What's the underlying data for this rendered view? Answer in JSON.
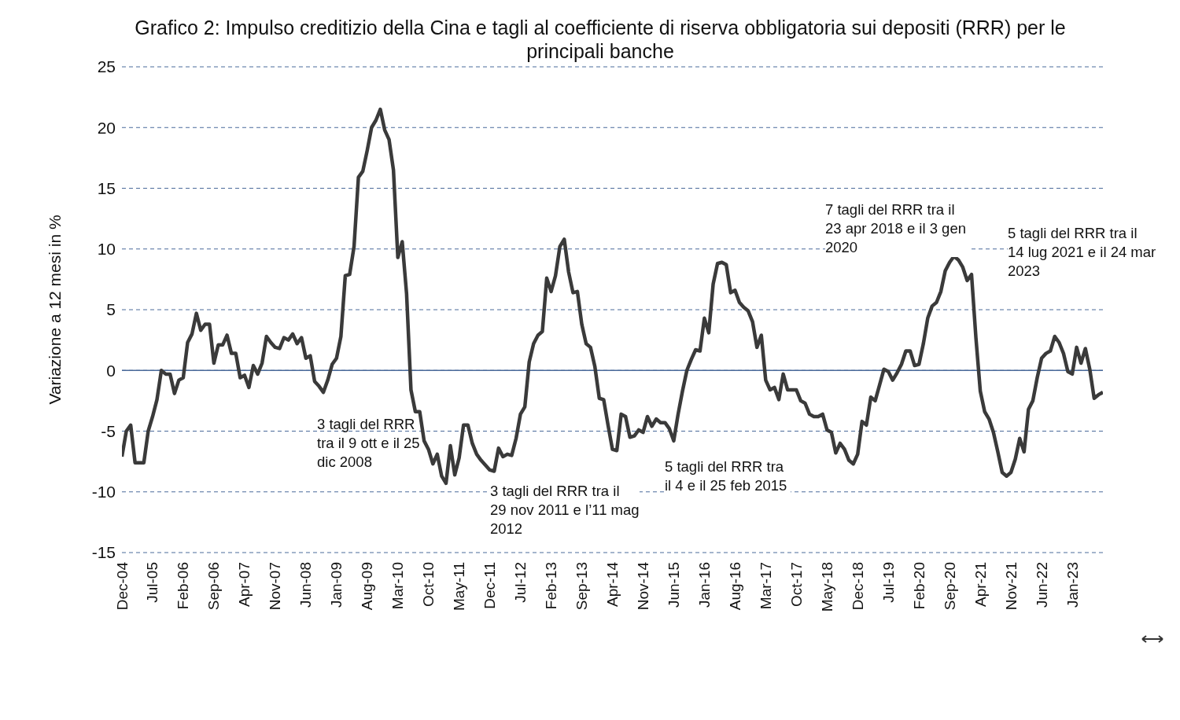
{
  "chart_data": {
    "type": "line",
    "title": "Grafico 2: Impulso creditizio della Cina e tagli al coefficiente di riserva obbligatoria sui depositi (RRR) per le principali banche",
    "ylabel": "Variazione a 12 mesi in %",
    "categories": [
      "Dec-04",
      null,
      null,
      null,
      null,
      null,
      null,
      "Jul-05",
      null,
      null,
      null,
      null,
      null,
      null,
      "Feb-06",
      null,
      null,
      null,
      null,
      null,
      null,
      "Sep-06",
      null,
      null,
      null,
      null,
      null,
      null,
      "Apr-07",
      null,
      null,
      null,
      null,
      null,
      null,
      "Nov-07",
      null,
      null,
      null,
      null,
      null,
      null,
      "Jun-08",
      null,
      null,
      null,
      null,
      null,
      null,
      "Jan-09",
      null,
      null,
      null,
      null,
      null,
      null,
      "Aug-09",
      null,
      null,
      null,
      null,
      null,
      null,
      "Mar-10",
      null,
      null,
      null,
      null,
      null,
      null,
      "Oct-10",
      null,
      null,
      null,
      null,
      null,
      null,
      "May-11",
      null,
      null,
      null,
      null,
      null,
      null,
      "Dec-11",
      null,
      null,
      null,
      null,
      null,
      null,
      "Jul-12",
      null,
      null,
      null,
      null,
      null,
      null,
      "Feb-13",
      null,
      null,
      null,
      null,
      null,
      null,
      "Sep-13",
      null,
      null,
      null,
      null,
      null,
      null,
      "Apr-14",
      null,
      null,
      null,
      null,
      null,
      null,
      "Nov-14",
      null,
      null,
      null,
      null,
      null,
      null,
      "Jun-15",
      null,
      null,
      null,
      null,
      null,
      null,
      "Jan-16",
      null,
      null,
      null,
      null,
      null,
      null,
      "Aug-16",
      null,
      null,
      null,
      null,
      null,
      null,
      "Mar-17",
      null,
      null,
      null,
      null,
      null,
      null,
      "Oct-17",
      null,
      null,
      null,
      null,
      null,
      null,
      "May-18",
      null,
      null,
      null,
      null,
      null,
      null,
      "Dec-18",
      null,
      null,
      null,
      null,
      null,
      null,
      "Jul-19",
      null,
      null,
      null,
      null,
      null,
      null,
      "Feb-20",
      null,
      null,
      null,
      null,
      null,
      null,
      "Sep-20",
      null,
      null,
      null,
      null,
      null,
      null,
      "Apr-21",
      null,
      null,
      null,
      null,
      null,
      null,
      "Nov-21",
      null,
      null,
      null,
      null,
      null,
      null,
      "Jun-22",
      null,
      null,
      null,
      null,
      null,
      null,
      "Jan-23",
      null,
      null,
      null,
      null,
      null,
      null,
      null
    ],
    "series": [
      {
        "color": "#3a3a3a",
        "values": [
          -7.1,
          -5.0,
          -4.5,
          -7.6,
          -7.6,
          -7.6,
          -5.0,
          -3.8,
          -2.4,
          0.0,
          -0.3,
          -0.3,
          -1.9,
          -0.8,
          -0.6,
          2.3,
          3.0,
          4.7,
          3.3,
          3.8,
          3.8,
          0.6,
          2.1,
          2.1,
          2.9,
          1.4,
          1.4,
          -0.6,
          -0.4,
          -1.4,
          0.4,
          -0.3,
          0.6,
          2.8,
          2.3,
          1.9,
          1.8,
          2.7,
          2.5,
          3.0,
          2.2,
          2.7,
          1.0,
          1.2,
          -0.9,
          -1.3,
          -1.8,
          -0.8,
          0.5,
          1.0,
          2.8,
          7.8,
          7.9,
          10.2,
          15.9,
          16.4,
          18.1,
          20.0,
          20.6,
          21.5,
          19.8,
          19.0,
          16.5,
          9.3,
          10.6,
          6.3,
          -1.6,
          -3.4,
          -3.4,
          -5.8,
          -6.5,
          -7.7,
          -6.9,
          -8.7,
          -9.3,
          -6.2,
          -8.6,
          -7.2,
          -4.5,
          -4.5,
          -6.0,
          -6.9,
          -7.4,
          -7.8,
          -8.2,
          -8.3,
          -6.4,
          -7.1,
          -6.9,
          -7.0,
          -5.6,
          -3.6,
          -3.0,
          0.7,
          2.2,
          2.9,
          3.2,
          7.6,
          6.5,
          7.8,
          10.2,
          10.8,
          8.1,
          6.4,
          6.5,
          3.8,
          2.2,
          1.9,
          0.3,
          -2.3,
          -2.4,
          -4.5,
          -6.5,
          -6.6,
          -3.6,
          -3.8,
          -5.5,
          -5.4,
          -4.9,
          -5.1,
          -3.8,
          -4.6,
          -4.0,
          -4.3,
          -4.3,
          -4.8,
          -5.8,
          -3.6,
          -1.7,
          0.0,
          0.9,
          1.7,
          1.6,
          4.3,
          3.1,
          7.1,
          8.8,
          8.9,
          8.7,
          6.4,
          6.6,
          5.6,
          5.2,
          4.9,
          4.0,
          1.9,
          2.9,
          -0.8,
          -1.6,
          -1.4,
          -2.4,
          -0.3,
          -1.6,
          -1.6,
          -1.6,
          -2.5,
          -2.7,
          -3.6,
          -3.8,
          -3.8,
          -3.6,
          -4.9,
          -5.1,
          -6.8,
          -6.0,
          -6.5,
          -7.4,
          -7.7,
          -6.9,
          -4.2,
          -4.5,
          -2.2,
          -2.5,
          -1.2,
          0.1,
          -0.1,
          -0.8,
          -0.2,
          0.5,
          1.6,
          1.6,
          0.4,
          0.5,
          2.2,
          4.3,
          5.3,
          5.6,
          6.5,
          8.2,
          8.9,
          9.4,
          9.1,
          8.5,
          7.4,
          7.9,
          2.7,
          -1.7,
          -3.4,
          -4.0,
          -5.1,
          -6.7,
          -8.4,
          -8.7,
          -8.4,
          -7.3,
          -5.6,
          -6.7,
          -3.2,
          -2.5,
          -0.6,
          1.0,
          1.4,
          1.6,
          2.8,
          2.3,
          1.4,
          -0.1,
          -0.3,
          1.9,
          0.6,
          1.8,
          0.1,
          -2.3,
          -2.0,
          -1.8
        ]
      }
    ],
    "ylim": [
      -15,
      25
    ],
    "yticks": [
      -15,
      -10,
      -5,
      0,
      5,
      10,
      15,
      20,
      25
    ],
    "grid": "y",
    "ref_lines": [
      {
        "axis": "y",
        "value": 0,
        "color": "#4a6a9a",
        "line_style": "solid"
      }
    ],
    "annotations": [
      "3 tagli del RRR tra il 9 ott e il 25 dic 2008",
      "3 tagli del RRR tra il 29 nov 2011 e l’11 mag 2012",
      "5 tagli del RRR tra il 4 e il 25 feb 2015",
      "7 tagli del RRR tra il 23 apr 2018 e il 3 gen 2020",
      "5 tagli del RRR tra il 14 lug 2021 e il 24 mar 2023"
    ]
  }
}
